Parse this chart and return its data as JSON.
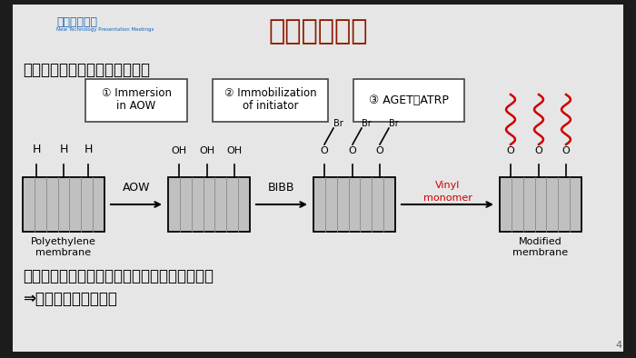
{
  "bg_color": "#1c1c1c",
  "slide_bg": "#e8e8e8",
  "title": "新技術の特徴",
  "title_color": "#8B1A00",
  "header_text": "新技術説明会",
  "header_subtext": "New Technology Presentation Meetings",
  "header_color": "#1565C0",
  "bullet1": "・減圧操作や脱酸素操作が不要",
  "step1_line1": "① Immersion",
  "step1_line2": "in AOW",
  "step2_line1": "② Immobilization",
  "step2_line2": "of initiator",
  "step3_label": "③ AGET－ATRP",
  "aow_label": "AOW",
  "bibb_label": "BIBB",
  "mem1_label": "Polyethylene\nmembrane",
  "mem4_label": "Modified\nmembrane",
  "vinyl_line1": "Vinyl",
  "vinyl_line2": "monomer",
  "vinyl_color": "#cc0000",
  "bullet2_line1": "・原理的に，膜モジュール内で一括修飾が可能",
  "bullet2_line2": "⇒スケールアップ可能",
  "text_color": "#000000",
  "page_num": "4"
}
